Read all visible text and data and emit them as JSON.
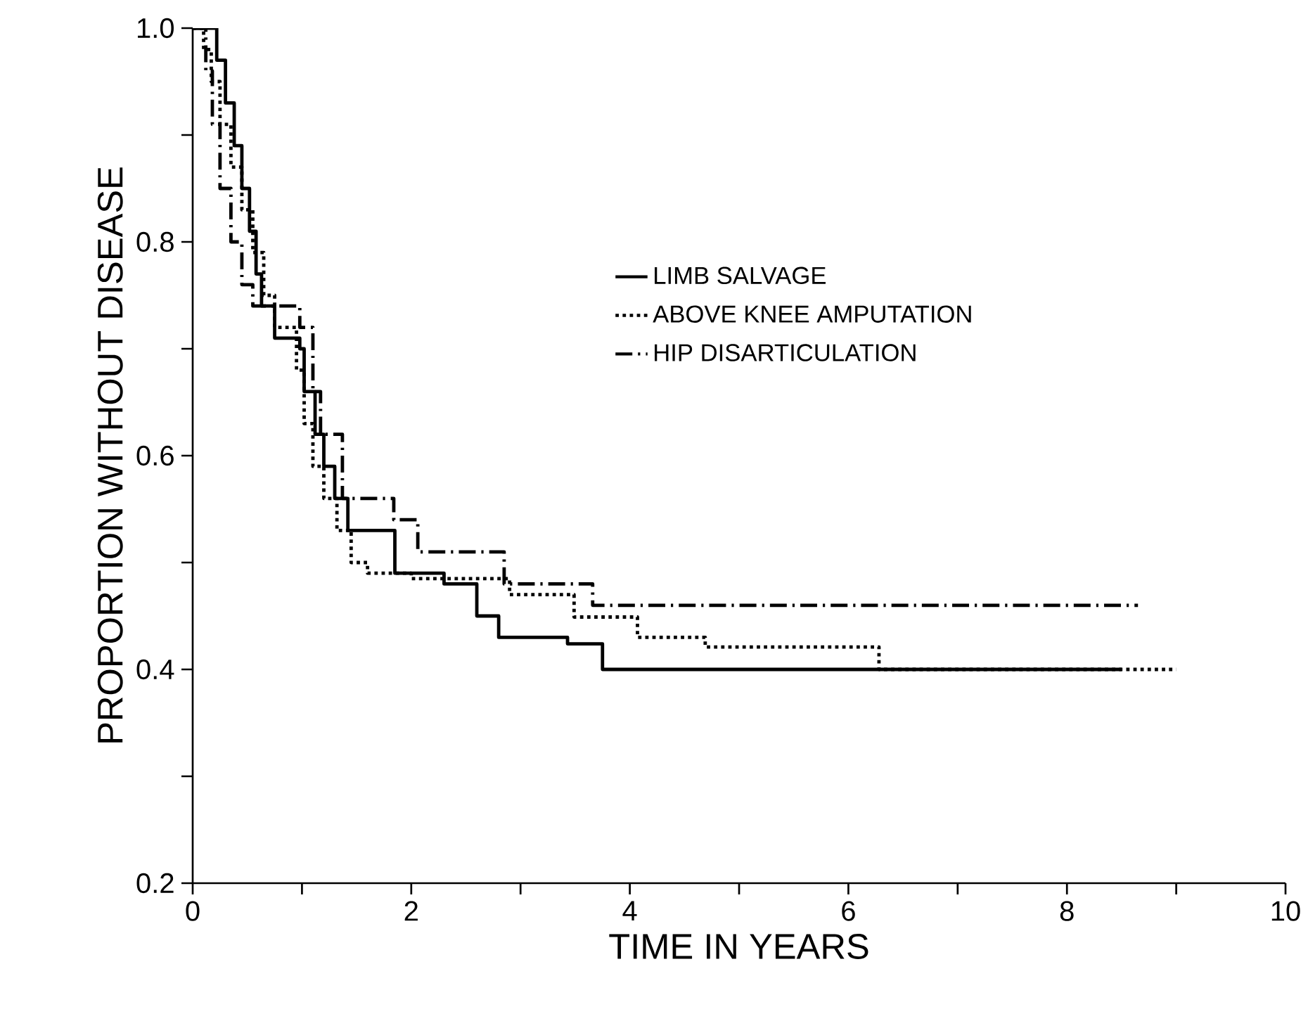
{
  "chart_data": {
    "type": "step",
    "xlabel": "TIME IN YEARS",
    "ylabel": "PROPORTION WITHOUT DISEASE",
    "xlim": [
      0,
      10
    ],
    "ylim": [
      0.2,
      1.0
    ],
    "xticks": [
      0,
      {
        "value": 1,
        "label": null
      },
      2,
      {
        "value": 3,
        "label": null
      },
      4,
      {
        "value": 5,
        "label": null
      },
      6,
      {
        "value": 7,
        "label": null
      },
      8,
      {
        "value": 9,
        "label": null
      },
      {
        "value": 10,
        "label": "10"
      }
    ],
    "yticks": [
      0.2,
      {
        "value": 0.3,
        "label": null
      },
      0.4,
      {
        "value": 0.5,
        "label": null
      },
      0.6,
      {
        "value": 0.7,
        "label": null
      },
      0.8,
      {
        "value": 0.9,
        "label": null
      },
      {
        "value": 1.0,
        "label": "1.0"
      }
    ],
    "grid": false,
    "legend": "top right",
    "series": [
      {
        "name": "LIMB SALVAGE",
        "color": "#000000",
        "line_style": "solid",
        "x": [
          0,
          0.22,
          0.3,
          0.38,
          0.45,
          0.52,
          0.58,
          0.63,
          0.75,
          0.98,
          1.02,
          1.12,
          1.2,
          1.3,
          1.42,
          1.85,
          2.3,
          2.6,
          2.8,
          3.43,
          3.75,
          8.5
        ],
        "values": [
          1,
          0.97,
          0.93,
          0.89,
          0.85,
          0.81,
          0.77,
          0.74,
          0.71,
          0.7,
          0.66,
          0.62,
          0.59,
          0.56,
          0.53,
          0.49,
          0.48,
          0.45,
          0.43,
          0.424,
          0.4,
          0.4
        ]
      },
      {
        "name": "ABOVE KNEE AMPUTATION",
        "color": "#000000",
        "line_style": "dotted",
        "x": [
          0,
          0.1,
          0.17,
          0.25,
          0.35,
          0.45,
          0.55,
          0.65,
          0.75,
          0.95,
          1.02,
          1.1,
          1.2,
          1.32,
          1.45,
          1.6,
          2.0,
          2.9,
          3.49,
          4.07,
          4.69,
          6.28,
          9.0
        ],
        "values": [
          1,
          0.98,
          0.95,
          0.91,
          0.87,
          0.83,
          0.79,
          0.75,
          0.72,
          0.68,
          0.63,
          0.59,
          0.56,
          0.53,
          0.5,
          0.49,
          0.485,
          0.47,
          0.449,
          0.43,
          0.421,
          0.4,
          0.4
        ]
      },
      {
        "name": "HIP DISARTICULATION",
        "color": "#000000",
        "line_style": "dashdot",
        "x": [
          0,
          0.12,
          0.18,
          0.25,
          0.35,
          0.45,
          0.55,
          0.98,
          1.1,
          1.17,
          1.37,
          1.84,
          2.06,
          2.85,
          3.66,
          8.65
        ],
        "values": [
          1,
          0.96,
          0.91,
          0.85,
          0.8,
          0.76,
          0.74,
          0.72,
          0.66,
          0.62,
          0.56,
          0.54,
          0.51,
          0.48,
          0.46,
          0.46
        ]
      }
    ]
  }
}
